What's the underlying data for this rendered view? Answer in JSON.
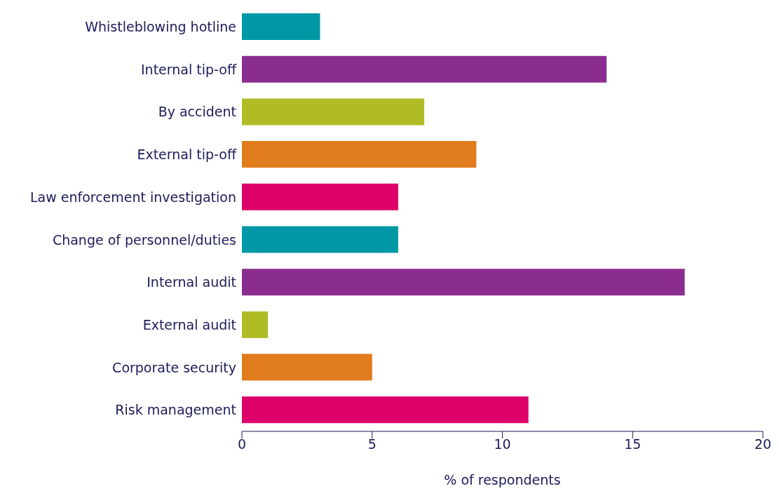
{
  "chart_data": {
    "type": "bar",
    "orientation": "horizontal",
    "xlabel": "% of respondents",
    "categories": [
      "Whistleblowing hotline",
      "Internal tip-off",
      "By accident",
      "External tip-off",
      "Law enforcement investigation",
      "Change of personnel/duties",
      "Internal audit",
      "External audit",
      "Corporate security",
      "Risk management"
    ],
    "values": [
      3,
      14,
      7,
      9,
      6,
      6,
      17,
      1,
      5,
      11
    ],
    "colors": [
      "#0098a6",
      "#8b2d8f",
      "#b0bc26",
      "#e07c1b",
      "#de0069",
      "#0098a6",
      "#8b2d8f",
      "#b0bc26",
      "#e07c1b",
      "#de0069"
    ],
    "xlim": [
      0,
      20
    ],
    "xticks": [
      0,
      5,
      10,
      15,
      20
    ],
    "grid": false,
    "legend": false
  }
}
